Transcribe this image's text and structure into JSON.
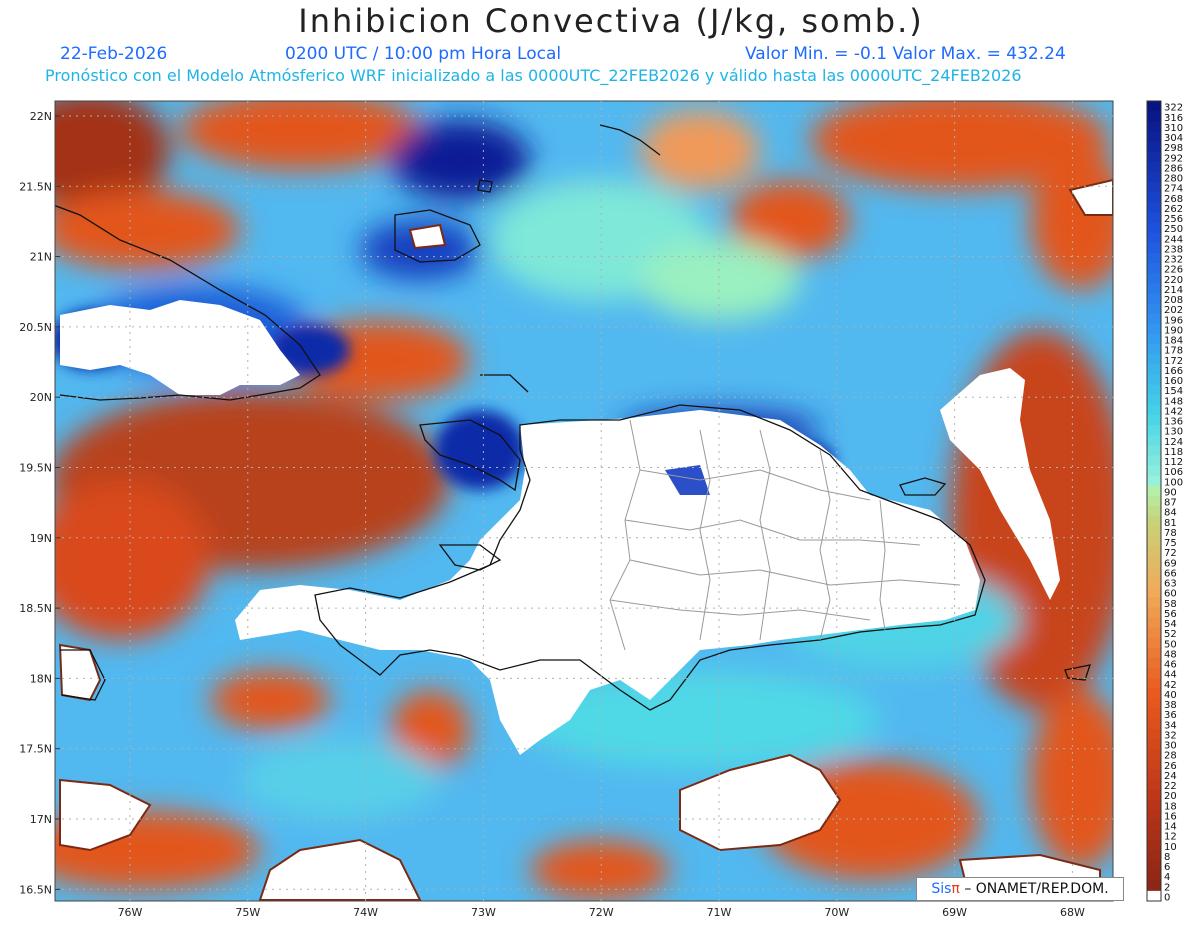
{
  "title": "Inhibicion Convectiva (J/kg, somb.)",
  "date": "22-Feb-2026",
  "time": "0200 UTC / 10:00 pm Hora Local",
  "minmax": "Valor Min. = -0.1  Valor Max. = 432.24",
  "forecast_note": "Pronóstico con el Modelo Atmósferico WRF inicializado a las 0000UTC_22FEB2026 y válido hasta las  0000UTC_24FEB2026",
  "credit": {
    "sis": "Sis",
    "pi": "π",
    "rest": "– ONAMET/REP.DOM."
  },
  "colors": {
    "land_blank": "#ffffff",
    "low_cin": "#8b2a1c",
    "mid_cin": "#e85a1e",
    "high_cin": "#0a1a8c",
    "cyan": "#3fd3e0",
    "border": "#111111",
    "province_lines": "#9a9a9a"
  },
  "lat_labels": [
    "22N",
    "21.5N",
    "21N",
    "20.5N",
    "20N",
    "19.5N",
    "19N",
    "18.5N",
    "18N",
    "17.5N",
    "17N",
    "16.5N"
  ],
  "lon_labels": [
    "76W",
    "75W",
    "74W",
    "73W",
    "72W",
    "71W",
    "70W",
    "69W",
    "68W"
  ],
  "colorbar_levels": [
    322,
    316,
    310,
    304,
    298,
    292,
    286,
    280,
    274,
    268,
    262,
    256,
    250,
    244,
    238,
    232,
    226,
    220,
    214,
    208,
    202,
    196,
    190,
    184,
    178,
    172,
    166,
    160,
    154,
    148,
    142,
    136,
    130,
    124,
    118,
    112,
    106,
    100,
    90,
    87,
    84,
    81,
    78,
    75,
    72,
    69,
    66,
    63,
    60,
    58,
    56,
    54,
    52,
    50,
    48,
    46,
    44,
    42,
    40,
    38,
    36,
    34,
    32,
    30,
    28,
    26,
    24,
    22,
    20,
    18,
    16,
    14,
    12,
    10,
    8,
    6,
    4,
    2,
    0
  ]
}
